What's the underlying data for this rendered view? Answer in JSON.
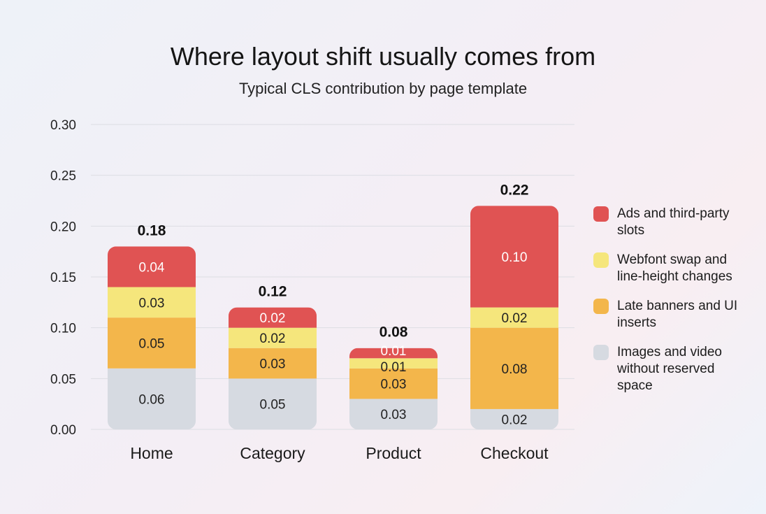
{
  "chart_data": {
    "type": "bar",
    "stacked": true,
    "title": "Where layout shift usually comes from",
    "subtitle": "Typical CLS contribution by page template",
    "categories": [
      "Home",
      "Category",
      "Product",
      "Checkout"
    ],
    "totals": [
      "0.18",
      "0.12",
      "0.08",
      "0.22"
    ],
    "series": [
      {
        "name": "Images and video without reserved space",
        "color": "#d6dae1",
        "values": [
          0.06,
          0.05,
          0.03,
          0.02
        ],
        "label_color": "#222222"
      },
      {
        "name": "Late banners and UI inserts",
        "color": "#f3b64b",
        "values": [
          0.05,
          0.03,
          0.03,
          0.08
        ],
        "label_color": "#222222"
      },
      {
        "name": "Webfont swap and line-height changes",
        "color": "#f5e67c",
        "values": [
          0.03,
          0.02,
          0.01,
          0.02
        ],
        "label_color": "#222222"
      },
      {
        "name": "Ads and third-party slots",
        "color": "#e05353",
        "values": [
          0.04,
          0.02,
          0.01,
          0.1
        ],
        "label_color": "#ffffff"
      }
    ],
    "legend_order": [
      3,
      2,
      1,
      0
    ],
    "yticks": [
      "0.00",
      "0.05",
      "0.10",
      "0.15",
      "0.20",
      "0.25",
      "0.30"
    ],
    "ylim": [
      0,
      0.3
    ],
    "xlabel": "",
    "ylabel": "",
    "grid": true,
    "legend_position": "right"
  }
}
